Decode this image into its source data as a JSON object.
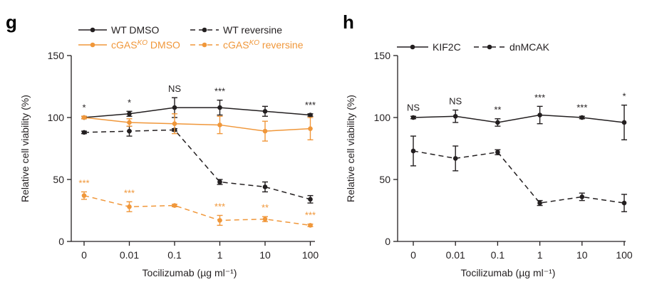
{
  "panels": {
    "g": {
      "letter": "g"
    },
    "h": {
      "letter": "h"
    }
  },
  "colors": {
    "black": "#231f20",
    "orange": "#f0973a"
  },
  "chart_data": [
    {
      "type": "line",
      "panel": "g",
      "ylabel": "Relative cell viability (%)",
      "xlabel": "Tocilizumab (µg ml⁻¹)",
      "categories": [
        "0",
        "0.01",
        "0.1",
        "1",
        "10",
        "100"
      ],
      "ylim": [
        0,
        150
      ],
      "yticks": [
        0,
        50,
        100,
        150
      ],
      "legend_position": "top",
      "series": [
        {
          "name": "WT DMSO",
          "color": "black",
          "dash": false,
          "values": [
            100,
            103,
            108,
            108,
            105,
            102
          ],
          "errors": [
            1,
            2,
            8,
            6,
            4,
            1
          ]
        },
        {
          "name": "WT reversine",
          "color": "black",
          "dash": true,
          "values": [
            88,
            89,
            90,
            48,
            44,
            34
          ],
          "errors": [
            1,
            4,
            1,
            2,
            4,
            3
          ]
        },
        {
          "name": "cGAS^KO DMSO",
          "color": "orange",
          "dash": false,
          "values": [
            100,
            96,
            95,
            94,
            89,
            91
          ],
          "errors": [
            1,
            3,
            8,
            7,
            8,
            9
          ]
        },
        {
          "name": "cGAS^KO reversine",
          "color": "orange",
          "dash": true,
          "values": [
            37,
            28,
            29,
            17,
            18,
            13
          ],
          "errors": [
            3,
            4,
            1,
            4,
            2,
            1
          ]
        }
      ],
      "significance": [
        {
          "category": "0",
          "label": "*",
          "color": "black"
        },
        {
          "category": "0.01",
          "label": "*",
          "color": "black"
        },
        {
          "category": "0.1",
          "label": "NS",
          "color": "black"
        },
        {
          "category": "1",
          "label": "***",
          "color": "black"
        },
        {
          "category": "10",
          "label": "",
          "color": "black"
        },
        {
          "category": "100",
          "label": "***",
          "color": "black"
        },
        {
          "category": "0",
          "label": "***",
          "color": "orange"
        },
        {
          "category": "0.01",
          "label": "***",
          "color": "orange"
        },
        {
          "category": "1",
          "label": "***",
          "color": "orange"
        },
        {
          "category": "10",
          "label": "**",
          "color": "orange"
        },
        {
          "category": "100",
          "label": "***",
          "color": "orange"
        }
      ]
    },
    {
      "type": "line",
      "panel": "h",
      "ylabel": "Relative cell viability (%)",
      "xlabel": "Tocilizumab (µg ml⁻¹)",
      "categories": [
        "0",
        "0.01",
        "0.1",
        "1",
        "10",
        "100"
      ],
      "ylim": [
        0,
        150
      ],
      "yticks": [
        0,
        50,
        100,
        150
      ],
      "legend_position": "top",
      "series": [
        {
          "name": "KIF2C",
          "color": "black",
          "dash": false,
          "values": [
            100,
            101,
            96,
            102,
            100,
            96
          ],
          "errors": [
            1,
            5,
            3,
            7,
            1,
            14
          ]
        },
        {
          "name": "dnMCAK",
          "color": "black",
          "dash": true,
          "values": [
            73,
            67,
            72,
            31,
            36,
            31
          ],
          "errors": [
            12,
            10,
            2,
            2,
            3,
            7
          ]
        }
      ],
      "significance": [
        {
          "category": "0",
          "label": "NS",
          "color": "black"
        },
        {
          "category": "0.01",
          "label": "NS",
          "color": "black"
        },
        {
          "category": "0.1",
          "label": "**",
          "color": "black"
        },
        {
          "category": "1",
          "label": "***",
          "color": "black"
        },
        {
          "category": "10",
          "label": "***",
          "color": "black"
        },
        {
          "category": "100",
          "label": "*",
          "color": "black"
        }
      ]
    }
  ]
}
